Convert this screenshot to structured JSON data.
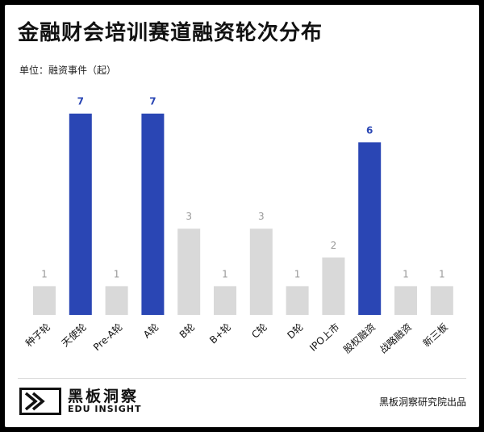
{
  "header": {
    "title": "金融财会培训赛道融资轮次分布",
    "unit": "单位：融资事件（起）"
  },
  "colors": {
    "highlight": "#2a46b4",
    "normal": "#d9d9d9",
    "highlight_label": "#2a46b4",
    "normal_label": "#999999"
  },
  "chart_data": {
    "type": "bar",
    "ylabel": "融资事件（起）",
    "ylim": [
      0,
      7.3
    ],
    "grid": false,
    "legend": "none",
    "categories": [
      "种子轮",
      "天使轮",
      "Pre-A轮",
      "A轮",
      "B轮",
      "B+轮",
      "C轮",
      "D轮",
      "IPO上市",
      "股权融资",
      "战略融资",
      "新三板"
    ],
    "values": [
      1,
      7,
      1,
      7,
      3,
      1,
      3,
      1,
      2,
      6,
      1,
      1
    ],
    "highlighted": [
      "天使轮",
      "A轮",
      "股权融资"
    ]
  },
  "footer": {
    "logo_cn": "黑板洞察",
    "logo_en": "EDU INSIGHT",
    "source": "黑板洞察研究院出品"
  }
}
